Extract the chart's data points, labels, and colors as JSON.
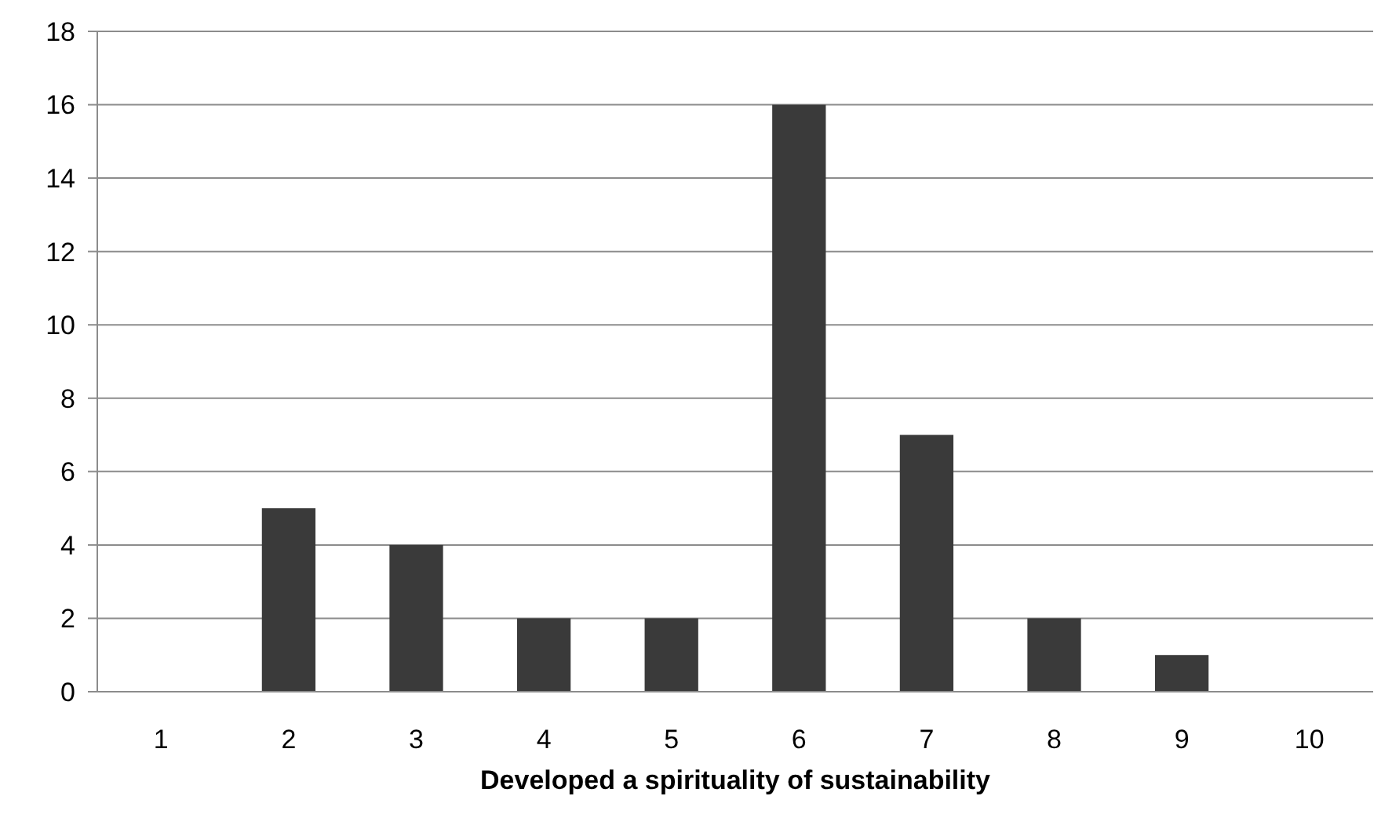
{
  "chart_data": {
    "type": "bar",
    "xlabel": "Developed a spirituality of sustainability",
    "categories": [
      "1",
      "2",
      "3",
      "4",
      "5",
      "6",
      "7",
      "8",
      "9",
      "10"
    ],
    "values": [
      0,
      5,
      4,
      2,
      2,
      16,
      7,
      2,
      1,
      0
    ],
    "color": "#3a3a3a",
    "ylim": [
      0,
      18
    ],
    "yticks": [
      0,
      2,
      4,
      6,
      8,
      10,
      12,
      14,
      16,
      18
    ],
    "grid": "y"
  }
}
